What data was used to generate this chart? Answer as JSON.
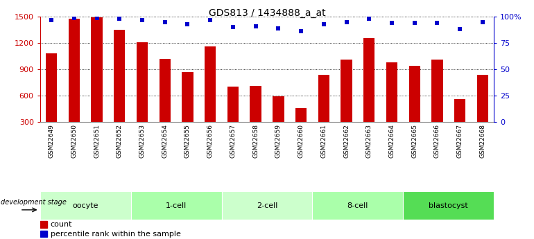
{
  "title": "GDS813 / 1434888_a_at",
  "samples": [
    "GSM22649",
    "GSM22650",
    "GSM22651",
    "GSM22652",
    "GSM22653",
    "GSM22654",
    "GSM22655",
    "GSM22656",
    "GSM22657",
    "GSM22658",
    "GSM22659",
    "GSM22660",
    "GSM22661",
    "GSM22662",
    "GSM22663",
    "GSM22664",
    "GSM22665",
    "GSM22666",
    "GSM22667",
    "GSM22668"
  ],
  "counts": [
    1080,
    1480,
    1490,
    1350,
    1210,
    1020,
    870,
    1160,
    700,
    710,
    590,
    460,
    840,
    1010,
    1260,
    980,
    940,
    1010,
    560,
    840
  ],
  "percentiles": [
    97,
    99,
    99,
    98,
    97,
    95,
    93,
    97,
    90,
    91,
    89,
    86,
    93,
    95,
    98,
    94,
    94,
    94,
    88,
    95
  ],
  "groups": [
    {
      "label": "oocyte",
      "start": 0,
      "end": 3,
      "color": "#ccffcc"
    },
    {
      "label": "1-cell",
      "start": 4,
      "end": 7,
      "color": "#aaffaa"
    },
    {
      "label": "2-cell",
      "start": 8,
      "end": 11,
      "color": "#ccffcc"
    },
    {
      "label": "8-cell",
      "start": 12,
      "end": 15,
      "color": "#aaffaa"
    },
    {
      "label": "blastocyst",
      "start": 16,
      "end": 19,
      "color": "#55dd55"
    }
  ],
  "bar_color": "#cc0000",
  "dot_color": "#0000cc",
  "ylim_left": [
    300,
    1500
  ],
  "ylim_right": [
    0,
    100
  ],
  "yticks_left": [
    300,
    600,
    900,
    1200,
    1500
  ],
  "yticks_right": [
    0,
    25,
    50,
    75,
    100
  ],
  "ytick_labels_right": [
    "0",
    "25",
    "50",
    "75",
    "100%"
  ],
  "dev_stage_label": "development stage",
  "legend_count_label": "count",
  "legend_pct_label": "percentile rank within the sample",
  "bar_width": 0.5,
  "plot_bg_color": "#ffffff",
  "xtick_bg_color": "#cccccc"
}
